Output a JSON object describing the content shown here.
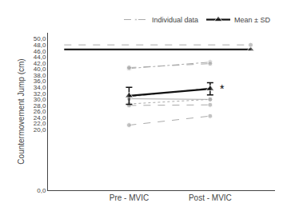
{
  "chart_data": {
    "type": "line",
    "y_label": "Countermovement Jump (cm)",
    "xlim": [
      0,
      2.8
    ],
    "xticks": [
      {
        "value": 1,
        "label": "Pre - MVIC"
      },
      {
        "value": 2,
        "label": "Post - MVIC"
      }
    ],
    "ylim": [
      0,
      52
    ],
    "yticks": [
      {
        "value": 0,
        "label": "0,0"
      },
      {
        "value": 20,
        "label": "20,0"
      },
      {
        "value": 22,
        "label": "22,0"
      },
      {
        "value": 24,
        "label": "24,0"
      },
      {
        "value": 26,
        "label": "26,0"
      },
      {
        "value": 28,
        "label": "28,0"
      },
      {
        "value": 30,
        "label": "30,0"
      },
      {
        "value": 32,
        "label": "32,0"
      },
      {
        "value": 34,
        "label": "34,0"
      },
      {
        "value": 36,
        "label": "36,0"
      },
      {
        "value": 38,
        "label": "38,0"
      },
      {
        "value": 40,
        "label": "40,0"
      },
      {
        "value": 42,
        "label": "42,0"
      },
      {
        "value": 44,
        "label": "44,0"
      },
      {
        "value": 46,
        "label": "46,0"
      },
      {
        "value": 48,
        "label": "48,0"
      },
      {
        "value": 50,
        "label": "50,0"
      }
    ],
    "grid": false,
    "legend": "upper right",
    "series": [
      {
        "color": "#222222",
        "line_style": "solid",
        "marker": "triangle",
        "x": [
          0.2,
          2.5
        ],
        "values": [
          46.5,
          46.5
        ]
      },
      {
        "name": "Individual data",
        "color": "#aaaaaa",
        "line_style": "dashed",
        "marker": "circle",
        "x": [
          0.2,
          2.5
        ],
        "values": [
          48.0,
          48.0
        ]
      },
      {
        "color": "#aaaaaa",
        "line_style": "dashdot",
        "marker": "circle",
        "x": [
          1,
          2
        ],
        "values": [
          40.2,
          42.3
        ]
      },
      {
        "color": "#aaaaaa",
        "line_style": "dashed",
        "marker": "circle",
        "x": [
          1,
          2
        ],
        "values": [
          40.5,
          41.8
        ]
      },
      {
        "color": "#aaaaaa",
        "line_style": "dashdot",
        "marker": "circle",
        "x": [
          1,
          2
        ],
        "values": [
          30.8,
          33.8
        ]
      },
      {
        "color": "#aaaaaa",
        "line_style": "solid",
        "marker": "circle",
        "x": [
          1,
          2
        ],
        "values": [
          30.2,
          30.0
        ]
      },
      {
        "color": "#aaaaaa",
        "line_style": "dotted",
        "marker": "circle",
        "x": [
          1,
          2
        ],
        "values": [
          28.5,
          30.0
        ]
      },
      {
        "color": "#aaaaaa",
        "line_style": "dashed",
        "marker": "circle",
        "x": [
          1,
          2
        ],
        "values": [
          28.0,
          28.2
        ]
      },
      {
        "color": "#aaaaaa",
        "line_style": "dashed",
        "marker": "circle",
        "x": [
          1,
          2
        ],
        "values": [
          21.5,
          24.5
        ]
      },
      {
        "name": "Mean ± SD",
        "color": "#111111",
        "line_style": "solid",
        "marker": "triangle",
        "x": [
          1,
          2
        ],
        "values": [
          31.2,
          33.5
        ],
        "sd": [
          2.8,
          2.0
        ]
      }
    ],
    "annotations": [
      {
        "text": "*",
        "x": 2,
        "y": 33.5
      }
    ]
  }
}
